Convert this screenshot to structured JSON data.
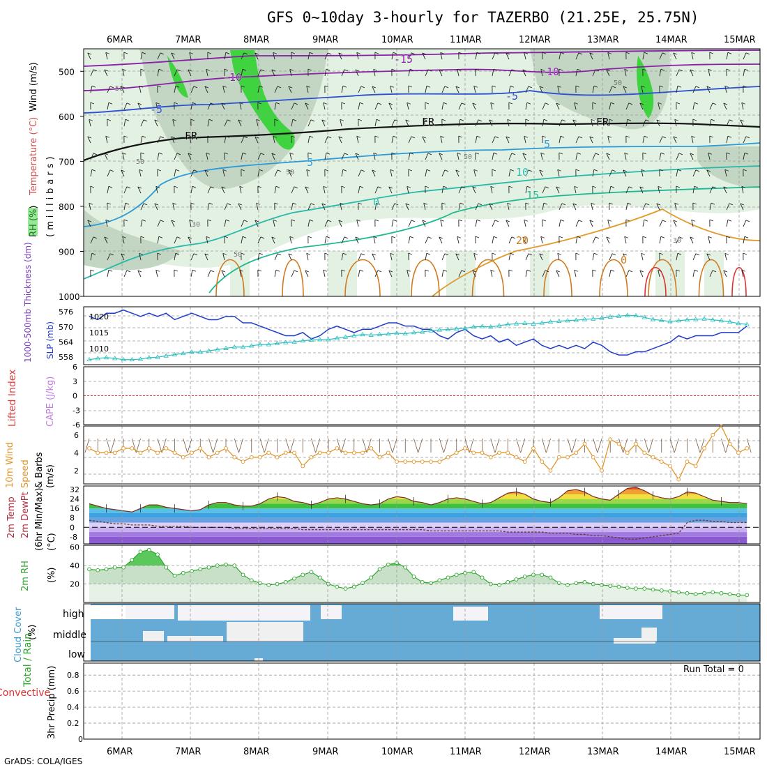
{
  "title": "GFS 0~10day 3-hourly for TAZERBO (21.25E, 25.75N)",
  "footer": "GrADS: COLA/IGES",
  "dates": [
    "6MAR",
    "7MAR",
    "8MAR",
    "9MAR",
    "10MAR",
    "11MAR",
    "12MAR",
    "13MAR",
    "14MAR",
    "15MAR"
  ],
  "colors": {
    "rh_light": "#e3f1e3",
    "rh_mid": "#c3d6c3",
    "rh_dark": "#99aa99",
    "rh_green": "#3fd43f",
    "slp": "#1f3cc8",
    "thickness": "#2cbfbf",
    "lifted": "#e04040",
    "cape": "#c080e0",
    "wind10": "#e0952a",
    "rh2m": "#2fa82f",
    "cloud": "#66aad6",
    "precip_total": "#2fa82f",
    "precip_conv": "#e03030"
  },
  "chart_data": [
    {
      "type": "contour",
      "panel": "upper-air",
      "ylabel_parts": [
        "RH (%)",
        "Temperature (°C)",
        "Wind (m/s)"
      ],
      "yunit": "(millibars)",
      "y_ticks": [
        "500",
        "600",
        "700",
        "800",
        "900",
        "1000"
      ],
      "ylim": [
        450,
        1000
      ],
      "temperature_contour_labels": [
        "-15",
        "-10",
        "-10",
        "-5",
        "-5",
        "FR",
        "FR",
        "FR",
        "5",
        "5",
        "0",
        "10",
        "15",
        "20",
        "0"
      ],
      "rh_contour_labels": [
        "50",
        "50",
        "50",
        "50",
        "30",
        "30",
        "50",
        "50"
      ],
      "grid": true
    },
    {
      "type": "line",
      "panel": "slp-thickness",
      "ylabel_left": "1000-500mb Thickness (dm)",
      "ylabel_right": "SLP (mb)",
      "thickness_ticks": [
        "576",
        "570",
        "564",
        "558"
      ],
      "slp_ticks": [
        "1020",
        "1015",
        "1010"
      ],
      "slp_ylim": [
        1005,
        1023
      ],
      "thickness_ylim": [
        555,
        578
      ],
      "series": [
        {
          "name": "SLP (mb)",
          "unit": "mb",
          "values": [
            1020,
            1019,
            1021,
            1021,
            1022,
            1021,
            1020,
            1021,
            1020,
            1021,
            1019,
            1020,
            1021,
            1020,
            1019,
            1019,
            1020,
            1020,
            1018,
            1018,
            1017,
            1016,
            1015,
            1014,
            1014,
            1015,
            1013,
            1014,
            1016,
            1017,
            1016,
            1015,
            1016,
            1016,
            1017,
            1018,
            1018,
            1017,
            1017,
            1016,
            1016,
            1014,
            1013,
            1015,
            1016,
            1014,
            1013,
            1014,
            1012,
            1013,
            1011,
            1012,
            1013,
            1011,
            1010,
            1011,
            1010,
            1011,
            1010,
            1012,
            1011,
            1009,
            1008,
            1008,
            1009,
            1009,
            1010,
            1011,
            1012,
            1014,
            1013,
            1014,
            1014,
            1014,
            1015,
            1015,
            1015,
            1017
          ]
        },
        {
          "name": "Thickness (dm)",
          "unit": "dm",
          "values": [
            557,
            557.5,
            557.8,
            557.5,
            557,
            557,
            557.2,
            557.8,
            558,
            558.5,
            559,
            559.5,
            560,
            560,
            560.5,
            561,
            561.5,
            562,
            562,
            562.5,
            563,
            563,
            563.5,
            563.8,
            564,
            564.5,
            564.8,
            565,
            565,
            565.5,
            566,
            566.5,
            567,
            566.8,
            567,
            567.2,
            567.5,
            567.3,
            567.8,
            568,
            568.5,
            568.8,
            569,
            569.2,
            569.5,
            570,
            570.2,
            570,
            570.5,
            571,
            571.3,
            571.5,
            571.2,
            571.6,
            572,
            572.3,
            572.5,
            572.7,
            573,
            573.2,
            573.5,
            574,
            574.3,
            574.6,
            574.5,
            573.8,
            573,
            572.6,
            572.2,
            572.5,
            572.8,
            573,
            573.2,
            572.8,
            572.5,
            572,
            571.4,
            571
          ]
        }
      ]
    },
    {
      "type": "line",
      "panel": "lifted-cape",
      "ylabel_left": "Lifted Index",
      "ylabel_right": "CAPE (J/kg)",
      "y_ticks": [
        "-6",
        "-3",
        "0",
        "3",
        "6"
      ],
      "ylim": [
        -6,
        6
      ],
      "series": [
        {
          "name": "Lifted Index",
          "values": [
            0,
            0,
            0,
            0,
            0,
            0,
            0,
            0,
            0,
            0,
            0,
            0,
            0,
            0,
            0,
            0,
            0,
            0,
            0,
            0,
            0,
            0,
            0,
            0,
            0,
            0,
            0,
            0,
            0,
            0,
            0,
            0,
            0,
            0,
            0,
            0,
            0,
            0,
            0,
            0,
            0,
            0,
            0,
            0,
            0,
            0,
            0,
            0,
            0,
            0,
            0,
            0,
            0,
            0,
            0,
            0,
            0,
            0,
            0,
            0,
            0,
            0,
            0,
            0,
            0,
            0,
            0,
            0,
            0,
            0,
            0,
            0,
            0,
            0,
            0,
            0,
            0,
            0
          ]
        }
      ]
    },
    {
      "type": "line",
      "panel": "wind10m",
      "ylabel_parts": [
        "10m Wind",
        "Speed",
        "& Barbs",
        "(m/s)"
      ],
      "y_ticks": [
        "6",
        "4",
        "2"
      ],
      "ylim": [
        0.5,
        7
      ],
      "series": [
        {
          "name": "10m Wind Speed",
          "unit": "m/s",
          "values": [
            4.5,
            4,
            4,
            4,
            4.5,
            4.5,
            4,
            4.5,
            4,
            4.5,
            4,
            3.5,
            4,
            4.5,
            3.5,
            4,
            4.5,
            3.5,
            3,
            3.5,
            3.5,
            4,
            3.5,
            4,
            4,
            2.5,
            3.5,
            4,
            4,
            4.5,
            4,
            4,
            4,
            4.5,
            3.5,
            4,
            3,
            3,
            3,
            3,
            3,
            3,
            3.5,
            4,
            4.5,
            4,
            4,
            3.5,
            4,
            4,
            3.5,
            3,
            4.5,
            3,
            2,
            3.5,
            3.5,
            4,
            5,
            3.5,
            2,
            5.5,
            5,
            4,
            5,
            4,
            3.5,
            3,
            2.5,
            1,
            3,
            2.5,
            4.5,
            6,
            7,
            5,
            4,
            4.5
          ]
        }
      ]
    },
    {
      "type": "area",
      "panel": "temp2m",
      "ylabel_parts": [
        "2m Temp",
        "2m DewPt",
        "(6hr Min/Max)",
        "(°C)"
      ],
      "y_ticks": [
        "32",
        "24",
        "16",
        "8",
        "0",
        "-8"
      ],
      "ylim": [
        -14,
        35
      ],
      "series": [
        {
          "name": "2m Temp",
          "unit": "°C",
          "values": [
            20,
            18,
            16,
            15,
            14,
            13,
            16,
            19,
            19,
            17,
            16,
            15,
            14,
            15,
            19,
            21,
            21,
            19,
            18,
            18,
            20,
            24,
            26,
            25,
            22,
            21,
            19,
            21,
            24,
            25,
            24,
            22,
            20,
            19,
            20,
            24,
            26,
            25,
            22,
            21,
            19,
            21,
            24,
            25,
            24,
            22,
            20,
            21,
            25,
            29,
            30,
            28,
            24,
            22,
            21,
            25,
            31,
            32,
            30,
            26,
            24,
            23,
            28,
            33,
            34,
            31,
            27,
            25,
            24,
            26,
            30,
            29,
            26,
            23,
            22,
            21,
            21,
            20
          ]
        },
        {
          "name": "2m DewPt",
          "unit": "°C",
          "values": [
            6,
            5,
            4,
            3,
            3,
            2,
            2,
            2,
            1,
            1,
            1,
            1,
            0,
            0,
            0,
            0,
            0,
            -1,
            -1,
            -1,
            -1,
            -1,
            -1,
            -1,
            -1,
            -2,
            -2,
            -2,
            -2,
            -2,
            -2,
            -2,
            -2,
            -2,
            -2,
            -2,
            -2,
            -2,
            -2,
            -2,
            -3,
            -3,
            -3,
            -3,
            -3,
            -3,
            -3,
            -3,
            -3,
            -4,
            -4,
            -4,
            -4,
            -4,
            -5,
            -5,
            -5,
            -6,
            -6,
            -7,
            -7,
            -8,
            -9,
            -10,
            -10,
            -9,
            -8,
            -7,
            -6,
            -5,
            4,
            6,
            6,
            5,
            5,
            4,
            4,
            4
          ]
        }
      ]
    },
    {
      "type": "area",
      "panel": "rh2m",
      "ylabel_parts": [
        "2m RH",
        "(%)"
      ],
      "y_ticks": [
        "60",
        "40",
        "20"
      ],
      "ylim": [
        0,
        62
      ],
      "series": [
        {
          "name": "2m RH",
          "unit": "%",
          "values": [
            36,
            35,
            36,
            38,
            38,
            46,
            55,
            57,
            52,
            38,
            29,
            32,
            34,
            36,
            38,
            40,
            41,
            40,
            30,
            24,
            21,
            19,
            20,
            22,
            26,
            30,
            33,
            27,
            20,
            17,
            15,
            17,
            21,
            27,
            36,
            41,
            43,
            38,
            28,
            22,
            21,
            24,
            27,
            30,
            32,
            33,
            27,
            20,
            19,
            22,
            25,
            28,
            30,
            30,
            27,
            21,
            19,
            21,
            22,
            20,
            19,
            18,
            17,
            16,
            15,
            15,
            14,
            13,
            12,
            11,
            10,
            9,
            10,
            11,
            10,
            9,
            8,
            8
          ]
        }
      ]
    },
    {
      "type": "heatmap",
      "panel": "cloud",
      "ylabel_parts": [
        "Cloud Cover",
        "(%)"
      ],
      "rows": [
        "high",
        "middle",
        "low"
      ]
    },
    {
      "type": "bar",
      "panel": "precip",
      "ylabel_parts": [
        "Total / Rain",
        "Convective",
        "3hr Precip (mm)"
      ],
      "y_ticks": [
        "0.8",
        "0.6",
        "0.4",
        "0.2",
        "0"
      ],
      "ylim": [
        0,
        0.95
      ],
      "run_total": "Run Total = 0",
      "values": []
    }
  ]
}
